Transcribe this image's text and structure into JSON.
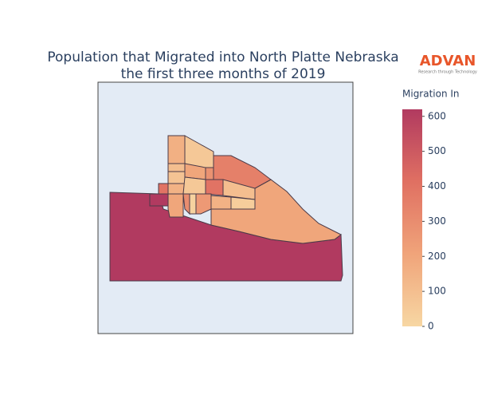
{
  "chart_data": {
    "type": "choropleth",
    "title": [
      "Population that Migrated into North Platte Nebraska",
      "the first three months of 2019"
    ],
    "values": [
      620,
      200,
      350,
      160,
      60,
      100,
      200,
      280,
      80,
      400,
      100,
      400,
      150,
      620,
      60,
      200,
      300,
      250,
      150,
      40,
      20
    ],
    "colorbar_title": "Migration In",
    "colorscale": [
      "#f7d7a3",
      "#f0a47a",
      "#e07062",
      "#b13a60"
    ],
    "colorlim": [
      0,
      620
    ],
    "colorticks": [
      0,
      100,
      200,
      300,
      400,
      500,
      600
    ],
    "logo": {
      "name": "ADVAN",
      "tagline": "Research through Technology"
    }
  }
}
